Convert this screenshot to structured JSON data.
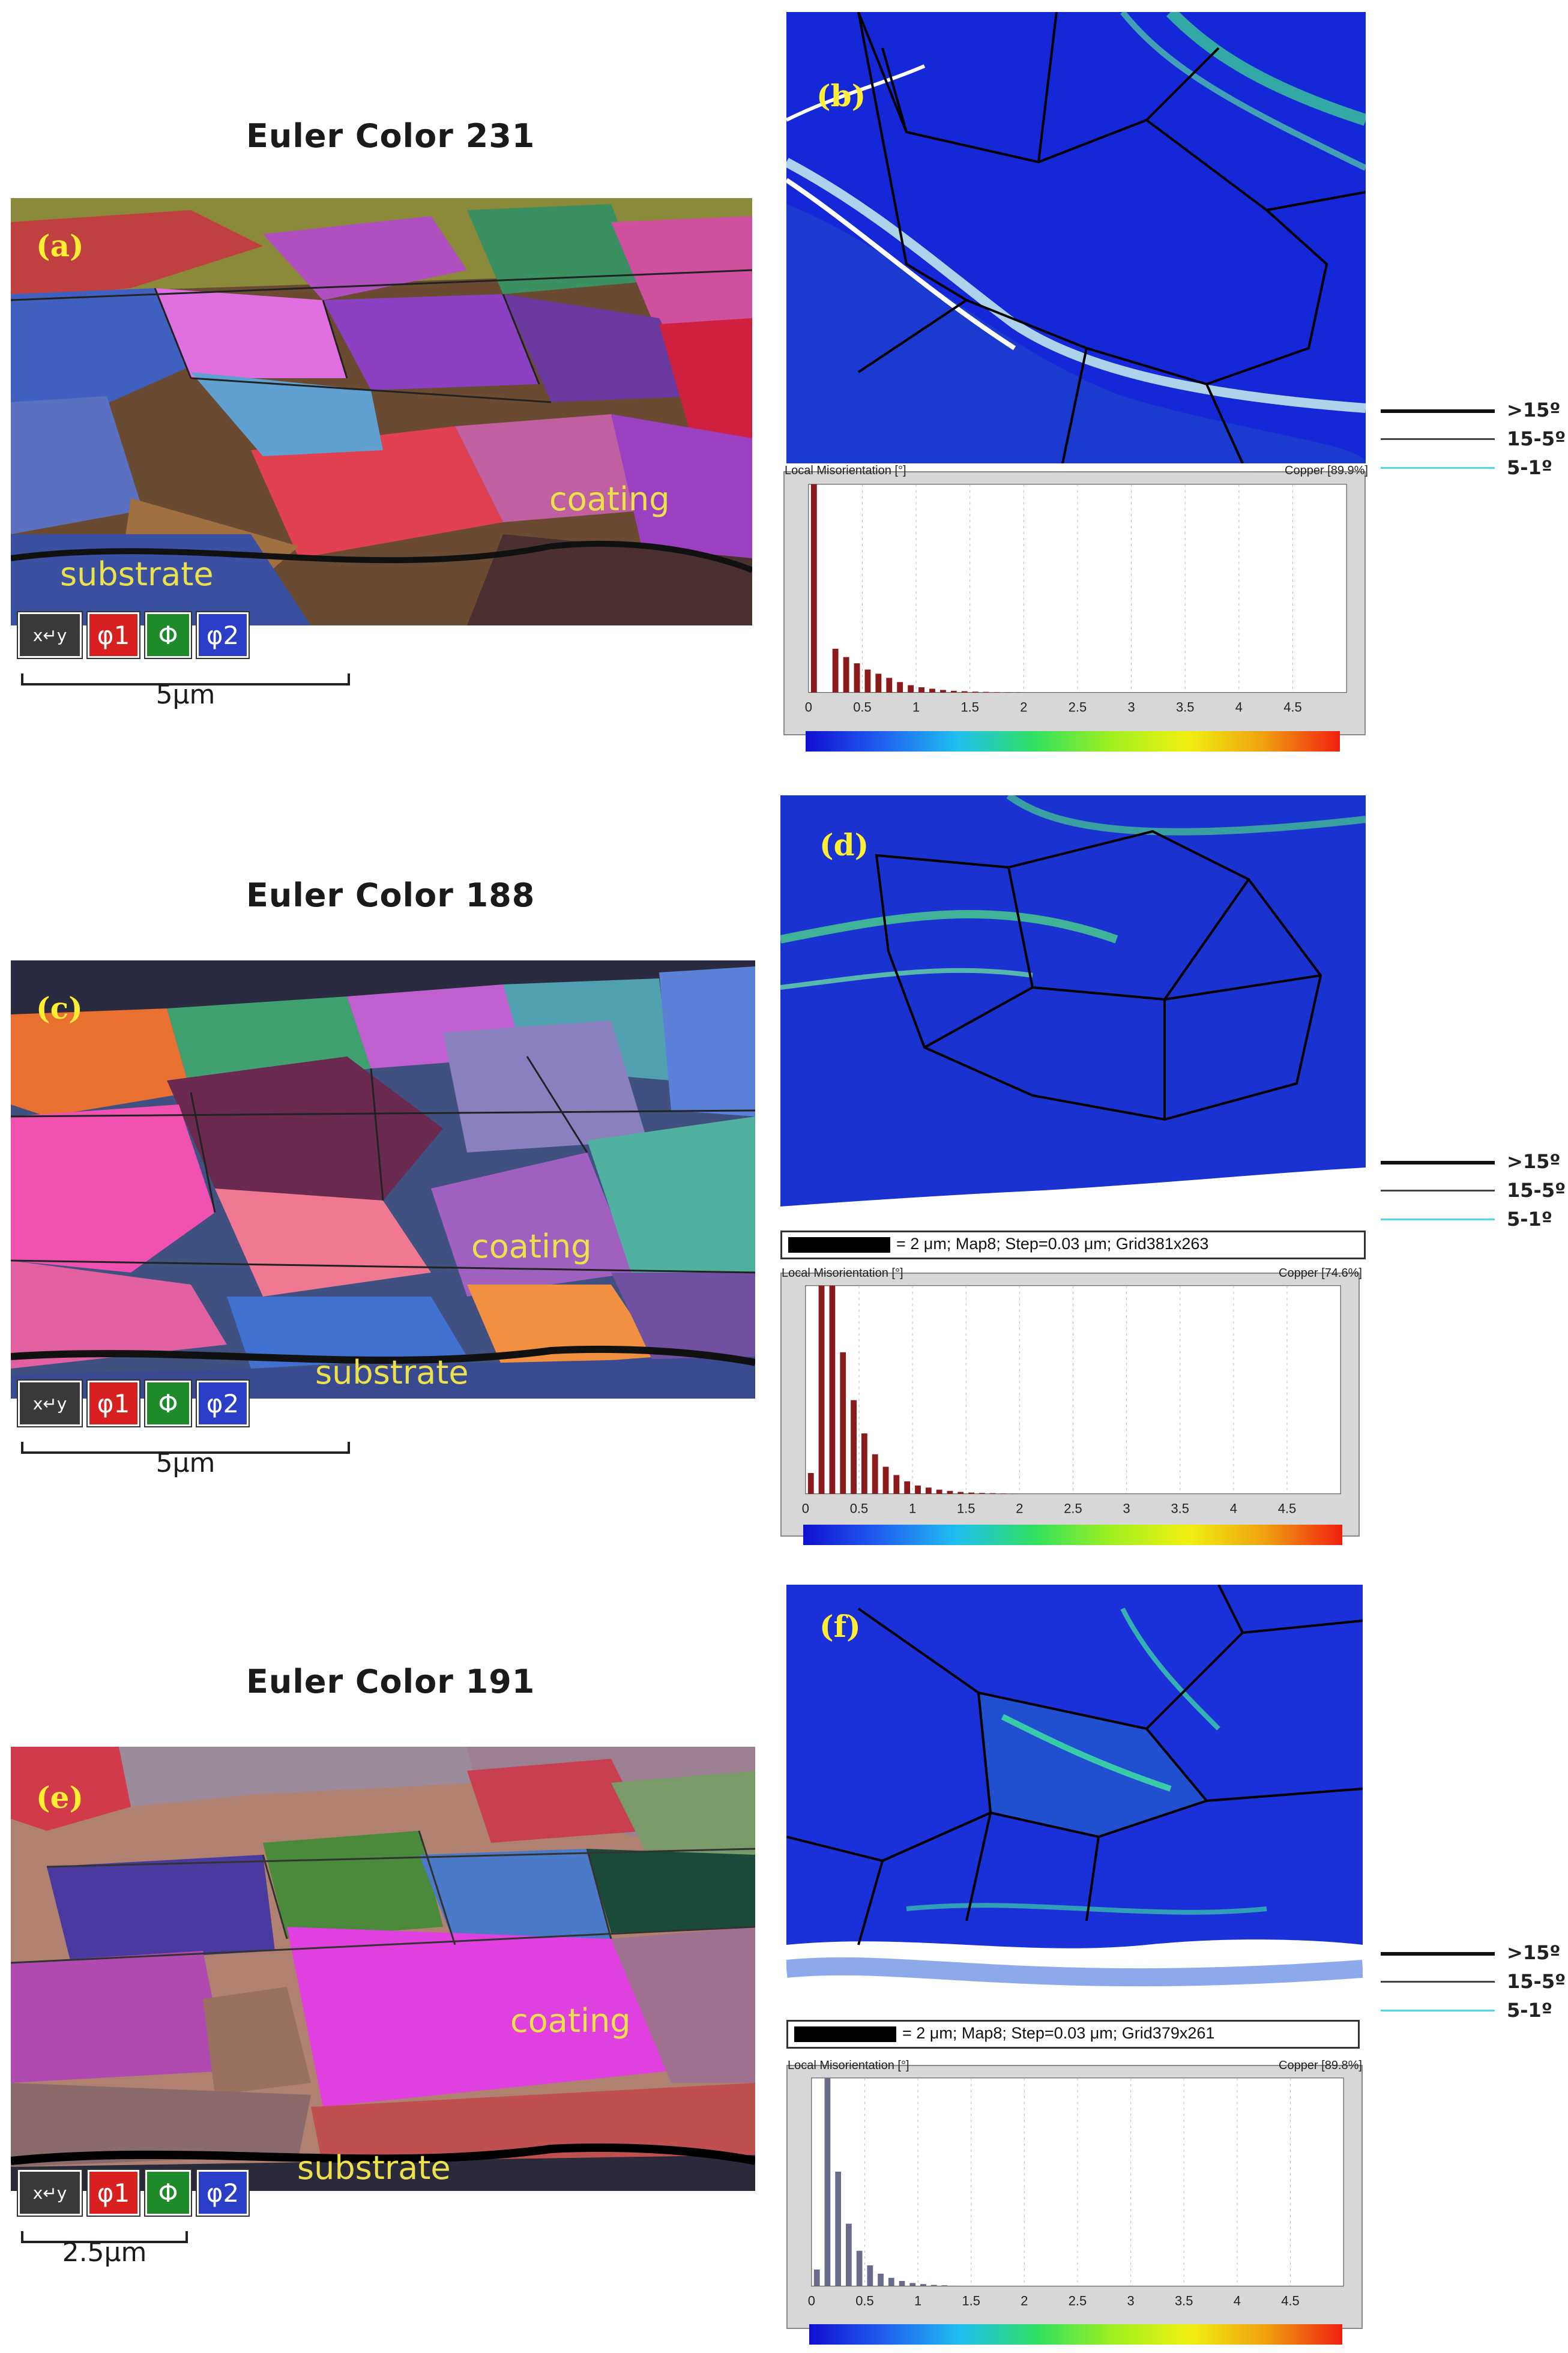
{
  "panels": {
    "a": {
      "label": "(a)",
      "title": "Euler Color 231",
      "coating": "coating",
      "substrate": "substrate",
      "scale": "5μm"
    },
    "b": {
      "label": "(b)"
    },
    "c": {
      "label": "(c)",
      "title": "Euler Color 188",
      "coating": "coating",
      "substrate": "substrate",
      "scale": "5μm"
    },
    "d": {
      "label": "(d)"
    },
    "e": {
      "label": "(e)",
      "title": "Euler Color 191",
      "coating": "coating",
      "substrate": "substrate",
      "scale": "2.5μm"
    },
    "f": {
      "label": "(f)"
    }
  },
  "euler_axes": {
    "xy": "x↵y",
    "phi1": "φ1",
    "Phi": "Φ",
    "phi2": "φ2"
  },
  "map_info": {
    "d": "= 2 μm; Map8; Step=0.03 μm; Grid381x263",
    "f": "= 2 μm; Map8; Step=0.03 μm; Grid379x261"
  },
  "legend": {
    "high": ">15º",
    "mid": "15-5º",
    "low": "5-1º"
  },
  "histograms": [
    {
      "id": "b",
      "title": "Local Misorientation [°]",
      "phase": "Copper [89.9%]",
      "bar_color": "#8b1a1a",
      "ticks": [
        "0",
        "0.5",
        "1",
        "1.5",
        "2",
        "2.5",
        "3",
        "3.5",
        "4",
        "4.5"
      ],
      "xmax": 5,
      "values": [
        1.0,
        0.0,
        0.21,
        0.17,
        0.14,
        0.11,
        0.09,
        0.07,
        0.05,
        0.035,
        0.025,
        0.018,
        0.012,
        0.008,
        0.006,
        0.004,
        0.003,
        0.002,
        0.0015,
        0.001
      ]
    },
    {
      "id": "d",
      "title": "Local Misorientation [°]",
      "phase": "Copper [74.6%]",
      "bar_color": "#8b1a1a",
      "ticks": [
        "0",
        "0.5",
        "1",
        "1.5",
        "2",
        "2.5",
        "3",
        "3.5",
        "4",
        "4.5"
      ],
      "xmax": 5,
      "values": [
        0.1,
        1.0,
        1.0,
        0.68,
        0.45,
        0.29,
        0.19,
        0.13,
        0.09,
        0.06,
        0.04,
        0.03,
        0.02,
        0.014,
        0.009,
        0.006,
        0.004,
        0.003,
        0.002,
        0.001
      ]
    },
    {
      "id": "f",
      "title": "Local Misorientation [°]",
      "phase": "Copper [89.8%]",
      "bar_color": "#6a6a8a",
      "ticks": [
        "0",
        "0.5",
        "1",
        "1.5",
        "2",
        "2.5",
        "3",
        "3.5",
        "4",
        "4.5"
      ],
      "xmax": 5,
      "values": [
        0.08,
        1.0,
        0.55,
        0.3,
        0.17,
        0.1,
        0.06,
        0.04,
        0.025,
        0.015,
        0.01,
        0.006,
        0.004,
        0.002,
        0.001
      ]
    }
  ]
}
